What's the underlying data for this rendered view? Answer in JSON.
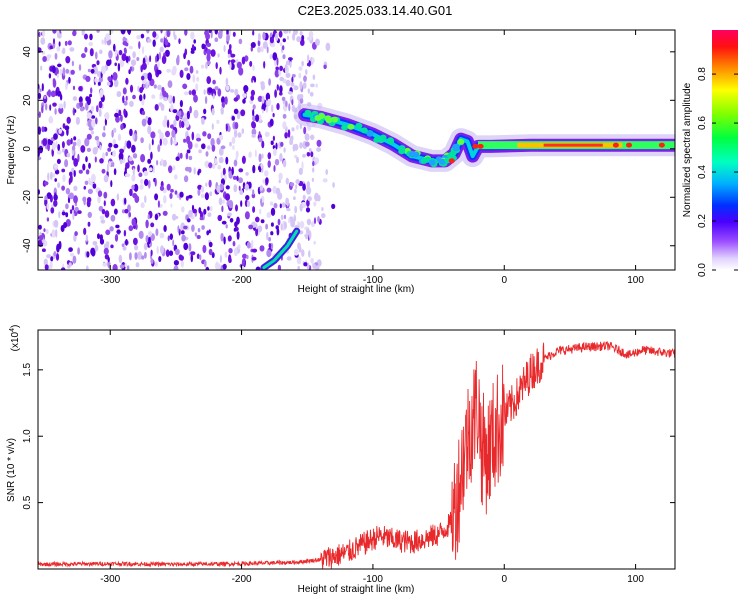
{
  "title": "C2E3.2025.033.14.40.G01",
  "chart_data": [
    {
      "type": "heatmap",
      "xlabel": "Height of straight line (km)",
      "ylabel": "Frequency (Hz)",
      "xlim": [
        -355,
        130
      ],
      "ylim": [
        -50,
        49
      ],
      "xticks": [
        -300,
        -200,
        -100,
        0,
        100
      ],
      "yticks": [
        -40,
        -20,
        0,
        20,
        40
      ],
      "colorbar": {
        "label": "Normalized spectral amplitude",
        "range": [
          0,
          0.98
        ],
        "ticks": [
          0.0,
          0.2,
          0.4,
          0.6,
          0.8
        ],
        "tick_labels": [
          "0.0",
          "0.2",
          "0.4",
          "0.6",
          "0.8"
        ],
        "colormap": [
          "#ffffff",
          "#d8c8f8",
          "#8a2be2",
          "#3b00ff",
          "#0040ff",
          "#00c8ff",
          "#00ff80",
          "#60ff00",
          "#ffff00",
          "#ff8000",
          "#ff0000",
          "#ff0060"
        ]
      },
      "noise_region_x": [
        -355,
        -140
      ],
      "main_trace": [
        {
          "x": -152,
          "y": 14
        },
        {
          "x": -140,
          "y": 13
        },
        {
          "x": -120,
          "y": 10
        },
        {
          "x": -100,
          "y": 6
        },
        {
          "x": -85,
          "y": 2
        },
        {
          "x": -70,
          "y": -3
        },
        {
          "x": -55,
          "y": -5
        },
        {
          "x": -45,
          "y": -5
        },
        {
          "x": -38,
          "y": -2
        },
        {
          "x": -33,
          "y": 4
        },
        {
          "x": -28,
          "y": 3
        },
        {
          "x": -24,
          "y": -3
        },
        {
          "x": -20,
          "y": 1
        },
        {
          "x": -10,
          "y": 1
        },
        {
          "x": 20,
          "y": 1.5
        },
        {
          "x": 60,
          "y": 1.5
        },
        {
          "x": 100,
          "y": 1.5
        },
        {
          "x": 130,
          "y": 1.5
        }
      ],
      "secondary_trace": [
        {
          "x": -183,
          "y": -49
        },
        {
          "x": -175,
          "y": -46
        },
        {
          "x": -165,
          "y": -40
        },
        {
          "x": -158,
          "y": -34
        }
      ]
    },
    {
      "type": "line",
      "xlabel": "Height of straight line (km)",
      "ylabel": "SNR (10 * v/v)",
      "scale_note": "(x10",
      "scale_exp": "4",
      "scale_close": ")",
      "xlim": [
        -355,
        130
      ],
      "ylim": [
        0,
        18000
      ],
      "xticks": [
        -300,
        -200,
        -100,
        0,
        100
      ],
      "yticks": [
        5000,
        10000,
        15000
      ],
      "ytick_labels": [
        "0.5",
        "1.0",
        "1.5"
      ],
      "series": [
        {
          "color": "#e8282a",
          "points": [
            {
              "x": -355,
              "y": 350
            },
            {
              "x": -300,
              "y": 400
            },
            {
              "x": -250,
              "y": 350
            },
            {
              "x": -200,
              "y": 400
            },
            {
              "x": -160,
              "y": 500
            },
            {
              "x": -140,
              "y": 700
            },
            {
              "x": -120,
              "y": 1200
            },
            {
              "x": -105,
              "y": 2000
            },
            {
              "x": -95,
              "y": 2500
            },
            {
              "x": -85,
              "y": 2200
            },
            {
              "x": -70,
              "y": 2000
            },
            {
              "x": -60,
              "y": 2300
            },
            {
              "x": -50,
              "y": 2600
            },
            {
              "x": -40,
              "y": 3500
            },
            {
              "x": -35,
              "y": 6000
            },
            {
              "x": -30,
              "y": 9000
            },
            {
              "x": -25,
              "y": 11000
            },
            {
              "x": -20,
              "y": 12500
            },
            {
              "x": -17,
              "y": 9000
            },
            {
              "x": -13,
              "y": 8500
            },
            {
              "x": -8,
              "y": 10000
            },
            {
              "x": 0,
              "y": 11500
            },
            {
              "x": 10,
              "y": 13000
            },
            {
              "x": 20,
              "y": 14800
            },
            {
              "x": 30,
              "y": 15800
            },
            {
              "x": 40,
              "y": 16400
            },
            {
              "x": 60,
              "y": 16700
            },
            {
              "x": 80,
              "y": 16800
            },
            {
              "x": 95,
              "y": 16100
            },
            {
              "x": 105,
              "y": 16500
            },
            {
              "x": 130,
              "y": 16200
            }
          ]
        }
      ]
    }
  ]
}
